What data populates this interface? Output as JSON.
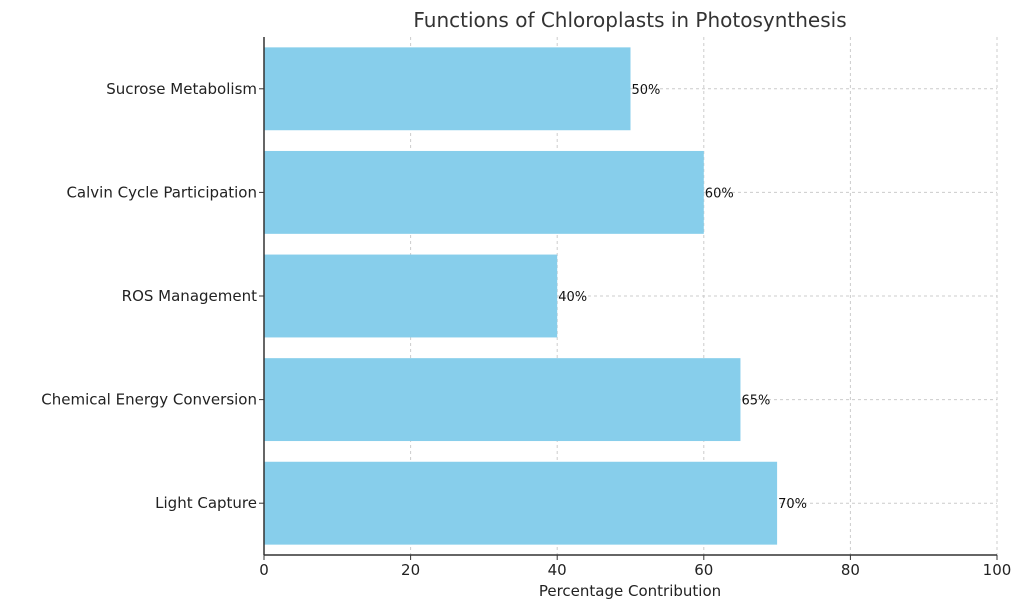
{
  "chart_data": {
    "type": "bar",
    "orientation": "horizontal",
    "title": "Functions of Chloroplasts in Photosynthesis",
    "xlabel": "Percentage Contribution",
    "ylabel": "",
    "xlim": [
      0,
      100
    ],
    "xticks": [
      0,
      20,
      40,
      60,
      80,
      100
    ],
    "categories": [
      "Light Capture",
      "Chemical Energy Conversion",
      "ROS Management",
      "Calvin Cycle Participation",
      "Sucrose Metabolism"
    ],
    "values": [
      70,
      65,
      40,
      60,
      50
    ],
    "data_labels": [
      "70%",
      "65%",
      "40%",
      "60%",
      "50%"
    ],
    "bar_color": "#87ceeb",
    "grid": true
  }
}
